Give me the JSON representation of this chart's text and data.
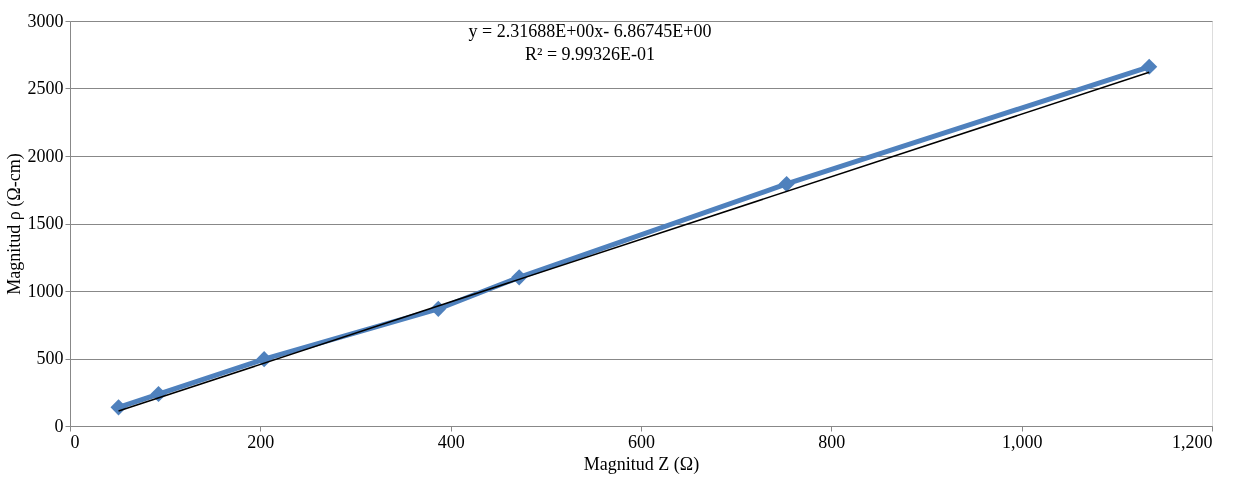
{
  "chart_data": {
    "type": "line",
    "xlabel": "Magnitud Z (Ω)",
    "ylabel": "Magnitud ρ (Ω-cm)",
    "xlim": [
      0,
      1200
    ],
    "xticks": [
      0,
      200,
      400,
      600,
      800,
      {
        "value": 1000,
        "label": "1,000"
      },
      {
        "value": 1200,
        "label": "1,200"
      }
    ],
    "ylim": [
      0,
      3000
    ],
    "yticks": [
      0,
      500,
      1000,
      1500,
      2000,
      2500,
      3000
    ],
    "grid": "y",
    "marker": "diamond",
    "line_style": "solid",
    "series": [
      {
        "color": "#4f81bd",
        "x": [
          51,
          93,
          204,
          387,
          472,
          753,
          1134
        ],
        "values": [
          138,
          237,
          495,
          868,
          1101,
          1793,
          2661
        ]
      },
      {
        "type": "line",
        "marker": "none",
        "color": "#000000",
        "x": [
          51,
          1134
        ],
        "values": [
          111,
          2620
        ]
      }
    ],
    "annotations": [
      "y = 2.31688E+00x- 6.86745E+00",
      "R² = 9.99326E-01"
    ]
  }
}
